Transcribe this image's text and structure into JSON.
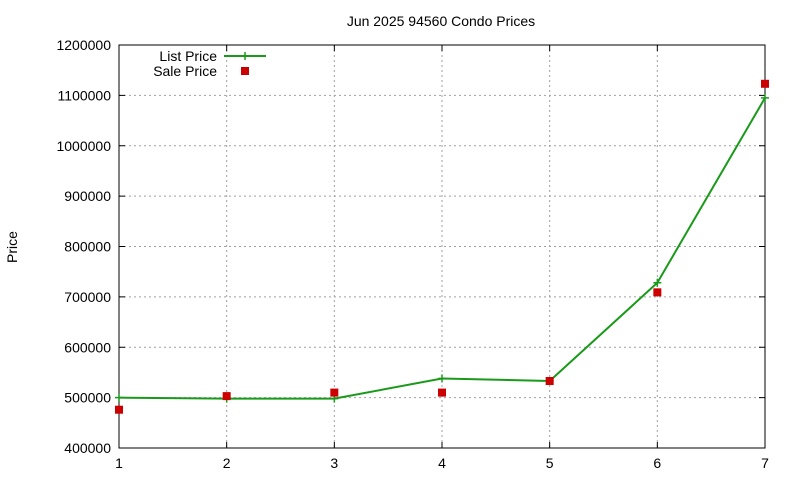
{
  "chart_data": {
    "type": "line",
    "title": "Jun 2025 94560 Condo Prices",
    "xlabel": "",
    "ylabel": "Price",
    "x": [
      1,
      2,
      3,
      4,
      5,
      6,
      7
    ],
    "xlim": [
      1,
      7
    ],
    "ylim": [
      400000,
      1200000
    ],
    "xticks": [
      "1",
      "2",
      "3",
      "4",
      "5",
      "6",
      "7"
    ],
    "yticks": [
      "400000",
      "500000",
      "600000",
      "700000",
      "800000",
      "900000",
      "1000000",
      "1100000",
      "1200000"
    ],
    "grid": true,
    "legend_position": "top-left",
    "series": [
      {
        "name": "List Price",
        "style": "line-with-plus-markers",
        "color": "#1a9a1a",
        "values": [
          500000,
          498000,
          498000,
          538000,
          533000,
          728000,
          1095000
        ]
      },
      {
        "name": "Sale Price",
        "style": "square-markers",
        "color": "#cc0000",
        "values": [
          476000,
          503000,
          510000,
          510000,
          533000,
          709000,
          1123000
        ]
      }
    ]
  }
}
